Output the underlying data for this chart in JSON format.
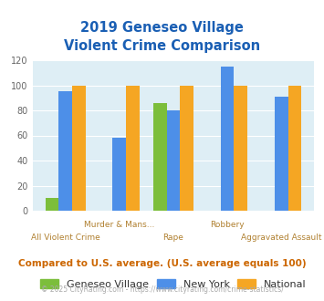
{
  "title_line1": "2019 Geneseo Village",
  "title_line2": "Violent Crime Comparison",
  "categories": [
    "All Violent Crime",
    "Murder & Mans...",
    "Rape",
    "Robbery",
    "Aggravated Assault"
  ],
  "series": {
    "Geneseo Village": [
      10,
      0,
      86,
      0,
      0
    ],
    "New York": [
      95,
      58,
      80,
      115,
      91
    ],
    "National": [
      100,
      100,
      100,
      100,
      100
    ]
  },
  "colors": {
    "Geneseo Village": "#7cbe3b",
    "New York": "#4d8fe8",
    "National": "#f5a623"
  },
  "ylim": [
    0,
    120
  ],
  "yticks": [
    0,
    20,
    40,
    60,
    80,
    100,
    120
  ],
  "bg_color": "#deeef5",
  "title_color": "#1a5fb4",
  "axis_label_color": "#b08030",
  "footer_note": "Compared to U.S. average. (U.S. average equals 100)",
  "copyright": "© 2025 CityRating.com - https://www.cityrating.com/crime-statistics/",
  "footer_color": "#cc6600",
  "copyright_color": "#aaaaaa"
}
